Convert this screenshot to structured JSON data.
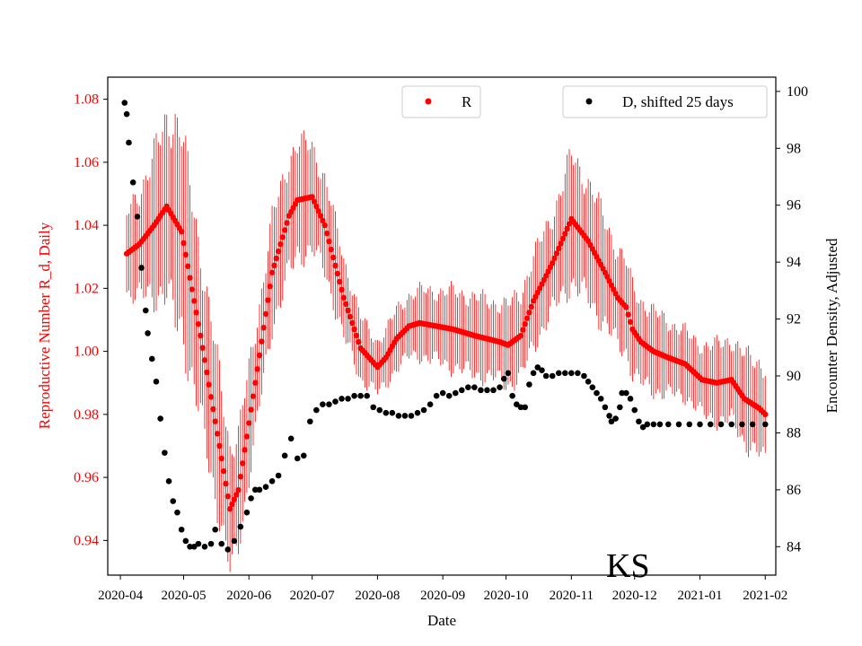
{
  "chart_data": {
    "type": "scatter",
    "title": "",
    "annotation": "KS",
    "xlabel": "Date",
    "ylabel_left": "Reproductive Number R_d, Daily",
    "ylabel_right": "Encounter Density, Adjusted",
    "x_range_days": [
      -6,
      311
    ],
    "ylim_left": [
      0.929,
      1.087
    ],
    "ylim_right": [
      83.0,
      100.5
    ],
    "x_tick_labels": [
      "2020-04",
      "2020-05",
      "2020-06",
      "2020-07",
      "2020-08",
      "2020-09",
      "2020-10",
      "2020-11",
      "2020-12",
      "2021-01",
      "2021-02"
    ],
    "x_tick_days": [
      0,
      30,
      61,
      91,
      122,
      153,
      183,
      214,
      244,
      275,
      306
    ],
    "y_left_ticks": [
      "0.94",
      "0.96",
      "0.98",
      "1.00",
      "1.02",
      "1.04",
      "1.06",
      "1.08"
    ],
    "y_left_values": [
      0.94,
      0.96,
      0.98,
      1.0,
      1.02,
      1.04,
      1.06,
      1.08
    ],
    "y_right_ticks": [
      "84",
      "86",
      "88",
      "90",
      "92",
      "94",
      "96",
      "98",
      "100"
    ],
    "y_right_values": [
      84,
      86,
      88,
      90,
      92,
      94,
      96,
      98,
      100
    ],
    "legend_left": {
      "label": "R",
      "color": "#ff0000",
      "position": "top-center"
    },
    "legend_right": {
      "label": "D, shifted 25 days",
      "color": "#000000",
      "position": "top-right"
    },
    "colors": {
      "r_series": "#ff0000",
      "d_series": "#000000",
      "left_axis": "#ff0000",
      "right_axis": "#000000"
    },
    "series_r_knots": {
      "day": [
        3,
        9,
        16,
        22,
        29,
        38,
        47,
        52,
        56,
        64,
        72,
        80,
        84,
        91,
        97,
        106,
        114,
        122,
        126,
        131,
        137,
        142,
        150,
        158,
        168,
        174,
        180,
        184,
        190,
        196,
        205,
        214,
        222,
        230,
        236,
        240,
        243,
        247,
        253,
        260,
        268,
        276,
        283,
        290,
        296,
        303,
        306
      ],
      "r": [
        1.031,
        1.034,
        1.04,
        1.046,
        1.038,
        1.005,
        0.97,
        0.95,
        0.956,
        0.99,
        1.025,
        1.043,
        1.048,
        1.049,
        1.04,
        1.017,
        1.001,
        0.995,
        0.998,
        1.004,
        1.008,
        1.009,
        1.008,
        1.007,
        1.005,
        1.004,
        1.003,
        1.002,
        1.005,
        1.016,
        1.028,
        1.042,
        1.035,
        1.025,
        1.017,
        1.014,
        1.007,
        1.003,
        1.0,
        0.998,
        0.996,
        0.991,
        0.99,
        0.991,
        0.985,
        0.982,
        0.98
      ]
    },
    "series_r_errorbar_halfwidth": {
      "day": [
        3,
        20,
        26,
        47,
        55,
        65,
        82,
        100,
        120,
        140,
        160,
        180,
        205,
        215,
        240,
        270,
        306
      ],
      "err": [
        0.012,
        0.025,
        0.032,
        0.022,
        0.018,
        0.016,
        0.018,
        0.014,
        0.008,
        0.01,
        0.012,
        0.012,
        0.015,
        0.02,
        0.014,
        0.01,
        0.015
      ]
    },
    "series_d_points": {
      "day": [
        2,
        3,
        4,
        6,
        8,
        10,
        12,
        13,
        15,
        17,
        19,
        21,
        23,
        25,
        27,
        29,
        31,
        33,
        35,
        37,
        40,
        43,
        45,
        48,
        51,
        54,
        57,
        60,
        62,
        64,
        66,
        69,
        72,
        75,
        78,
        81,
        84,
        87,
        90,
        93,
        96,
        99,
        102,
        105,
        108,
        111,
        114,
        117,
        120,
        123,
        126,
        129,
        132,
        135,
        138,
        141,
        144,
        147,
        150,
        153,
        156,
        159,
        162,
        165,
        168,
        171,
        174,
        177,
        180,
        182,
        184,
        186,
        188,
        190,
        192,
        194,
        196,
        198,
        200,
        202,
        205,
        208,
        211,
        214,
        217,
        220,
        222,
        224,
        226,
        228,
        230,
        232,
        233,
        235,
        237,
        238,
        240,
        242,
        244,
        246,
        248,
        250,
        253,
        256,
        260,
        265,
        270,
        275,
        280,
        285,
        290,
        295,
        300,
        306
      ],
      "d": [
        99.6,
        99.2,
        98.2,
        96.8,
        95.6,
        93.8,
        92.3,
        91.5,
        90.6,
        89.8,
        88.5,
        87.3,
        86.3,
        85.6,
        85.2,
        84.6,
        84.2,
        84.0,
        84.0,
        84.1,
        84.0,
        84.1,
        84.6,
        84.1,
        83.9,
        84.2,
        84.7,
        85.2,
        85.7,
        86.0,
        86.0,
        86.1,
        86.3,
        86.5,
        87.2,
        87.8,
        87.1,
        87.2,
        88.4,
        88.8,
        89.0,
        89.0,
        89.1,
        89.2,
        89.2,
        89.3,
        89.3,
        89.3,
        88.9,
        88.8,
        88.7,
        88.7,
        88.6,
        88.6,
        88.6,
        88.7,
        88.8,
        89.0,
        89.3,
        89.4,
        89.3,
        89.4,
        89.5,
        89.6,
        89.6,
        89.5,
        89.5,
        89.5,
        89.6,
        89.9,
        90.1,
        89.3,
        89.0,
        88.9,
        88.9,
        89.7,
        90.1,
        90.3,
        90.2,
        90.0,
        90.0,
        90.1,
        90.1,
        90.1,
        90.1,
        90.0,
        89.8,
        89.6,
        89.4,
        89.2,
        88.9,
        88.6,
        88.4,
        88.5,
        88.9,
        89.4,
        89.4,
        89.2,
        88.8,
        88.4,
        88.2,
        88.3,
        88.3,
        88.3,
        88.3,
        88.3,
        88.3,
        88.3,
        88.3,
        88.3,
        88.3,
        88.3,
        88.3,
        88.3
      ]
    }
  }
}
